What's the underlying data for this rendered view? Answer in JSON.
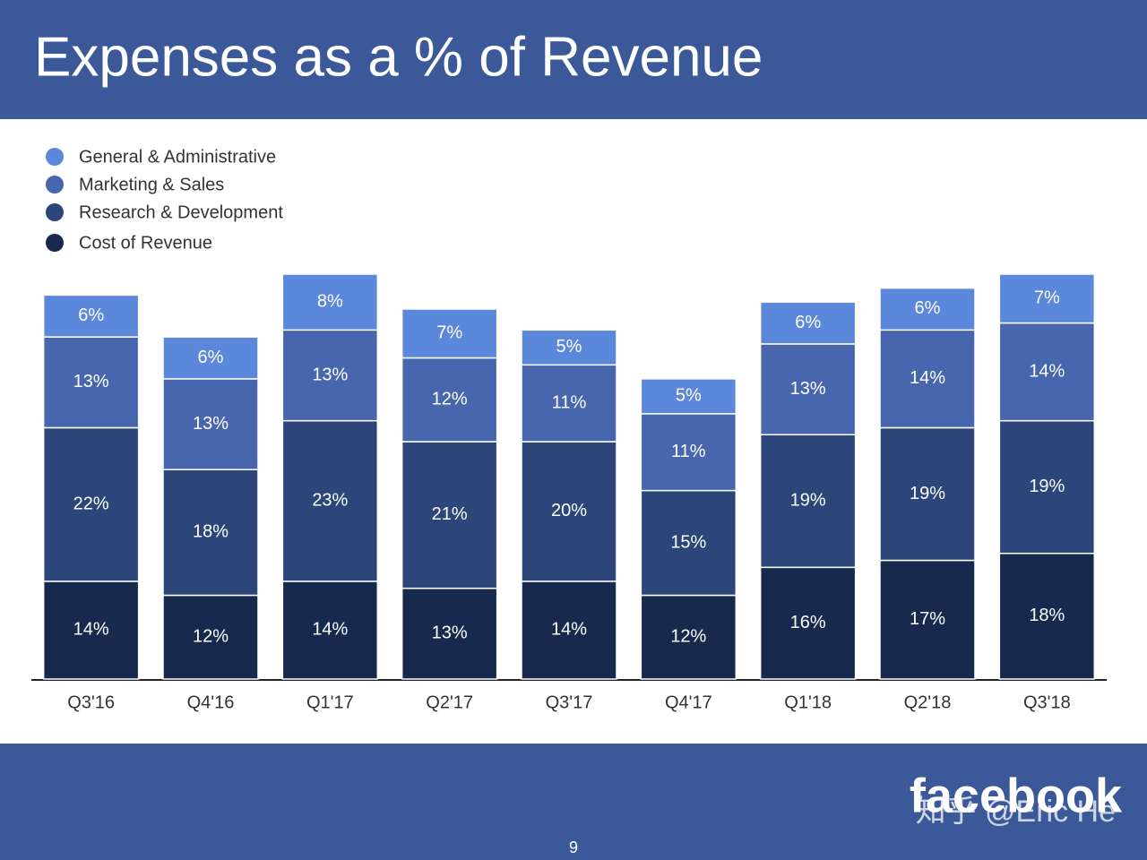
{
  "chart_data": {
    "type": "stacked-bar",
    "title": "Expenses as a % of Revenue",
    "categories": [
      "Q3'16",
      "Q4'16",
      "Q1'17",
      "Q2'17",
      "Q3'17",
      "Q4'17",
      "Q1'18",
      "Q2'18",
      "Q3'18"
    ],
    "series": [
      {
        "name": "Cost of Revenue",
        "color": "#172a4e",
        "values": [
          14,
          12,
          14,
          13,
          14,
          12,
          16,
          17,
          18
        ],
        "value_labels": [
          "14%",
          "12%",
          "14%",
          "13%",
          "14%",
          "12%",
          "16%",
          "17%",
          "18%"
        ]
      },
      {
        "name": "Research & Development",
        "color": "#2c4679",
        "values": [
          22,
          18,
          23,
          21,
          20,
          15,
          19,
          19,
          19
        ],
        "value_labels": [
          "22%",
          "18%",
          "23%",
          "21%",
          "20%",
          "15%",
          "19%",
          "19%",
          "19%"
        ]
      },
      {
        "name": "Marketing & Sales",
        "color": "#4766ae",
        "values": [
          13,
          13,
          13,
          12,
          11,
          11,
          13,
          14,
          14
        ],
        "value_labels": [
          "13%",
          "13%",
          "13%",
          "12%",
          "11%",
          "11%",
          "13%",
          "14%",
          "14%"
        ]
      },
      {
        "name": "General & Administrative",
        "color": "#5b88da",
        "values": [
          6,
          6,
          8,
          7,
          5,
          5,
          6,
          6,
          7
        ],
        "value_labels": [
          "6%",
          "6%",
          "8%",
          "7%",
          "5%",
          "5%",
          "6%",
          "6%",
          "7%"
        ]
      }
    ]
  },
  "footer": {
    "logo": "facebook",
    "watermark": "知乎 @Eric He",
    "page_number": "9"
  }
}
